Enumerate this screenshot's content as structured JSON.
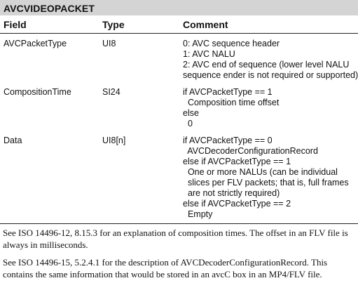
{
  "table": {
    "title": "AVCVIDEOPACKET",
    "headers": {
      "field": "Field",
      "type": "Type",
      "comment": "Comment"
    },
    "rows": [
      {
        "field": "AVCPacketType",
        "type": "UI8",
        "comment": [
          "0: AVC sequence header",
          "1: AVC NALU",
          "2: AVC end of sequence (lower level NALU",
          "sequence ender is not required or supported)"
        ]
      },
      {
        "field": "CompositionTime",
        "type": "SI24",
        "comment": [
          "if AVCPacketType == 1",
          "  Composition time offset",
          "else",
          "  0"
        ]
      },
      {
        "field": "Data",
        "type": "UI8[n]",
        "comment": [
          "if AVCPacketType == 0",
          "  AVCDecoderConfigurationRecord",
          "else if AVCPacketType == 1",
          "  One or more NALUs (can be individual",
          "  slices per FLV packets; that is, full frames",
          "  are not strictly required)",
          "else if AVCPacketType == 2",
          "  Empty"
        ]
      }
    ]
  },
  "notes": [
    "See ISO 14496-12, 8.15.3 for an explanation of composition times. The offset in an FLV file is always in milliseconds.",
    "See ISO 14496-15, 5.2.4.1 for the description of AVCDecoderConfigurationRecord. This contains the same information that would be stored in an avcC box in an MP4/FLV file."
  ]
}
